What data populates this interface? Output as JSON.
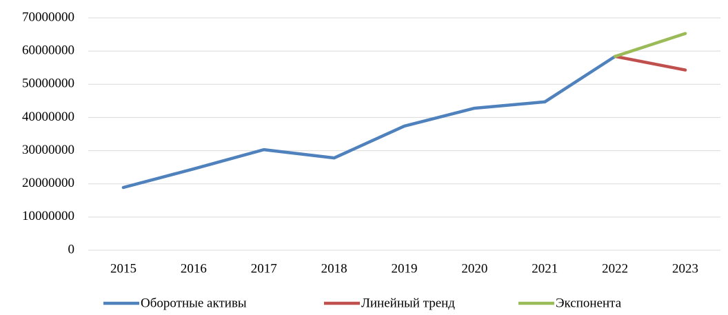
{
  "chart_data": {
    "type": "line",
    "categories": [
      "2015",
      "2016",
      "2017",
      "2018",
      "2019",
      "2020",
      "2021",
      "2022",
      "2023"
    ],
    "series": [
      {
        "name": "Оборотные активы",
        "color": "#4f81bd",
        "values": [
          18900000,
          24500000,
          30300000,
          27800000,
          37400000,
          42800000,
          44700000,
          58400000,
          null
        ]
      },
      {
        "name": "Линейный тренд",
        "color": "#c0504d",
        "values": [
          null,
          null,
          null,
          null,
          null,
          null,
          null,
          58400000,
          54300000
        ]
      },
      {
        "name": "Экспонента",
        "color": "#9bbb59",
        "values": [
          null,
          null,
          null,
          null,
          null,
          null,
          null,
          58400000,
          65300000
        ]
      }
    ],
    "ylim": [
      0,
      70000000
    ],
    "yticks": [
      0,
      10000000,
      20000000,
      30000000,
      40000000,
      50000000,
      60000000,
      70000000
    ],
    "grid": true,
    "legend": "bottom"
  }
}
